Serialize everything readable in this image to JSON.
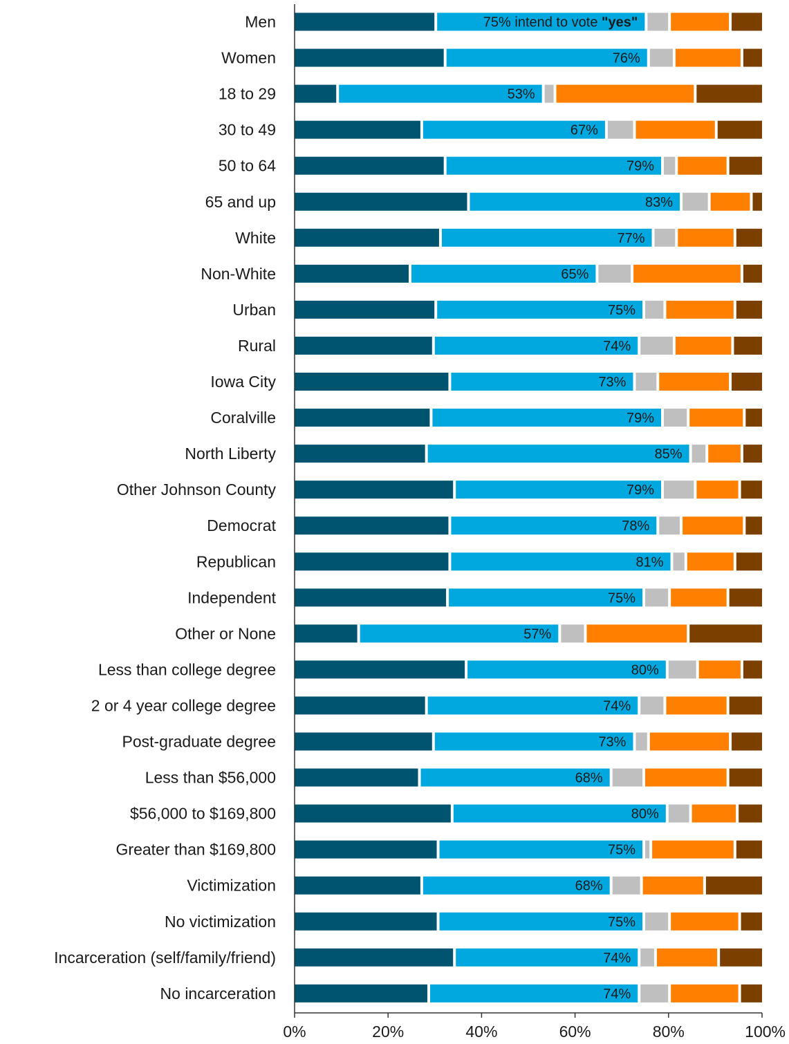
{
  "chart_data": {
    "type": "bar",
    "orientation": "horizontal",
    "stacked": true,
    "percent_scale": true,
    "xlim": [
      0,
      100
    ],
    "x_ticks": [
      "0%",
      "20%",
      "40%",
      "60%",
      "80%",
      "100%"
    ],
    "grid": false,
    "legend": "none",
    "colors": [
      "#005470",
      "#00a8df",
      "#bfbfbf",
      "#ff8000",
      "#7b3f00"
    ],
    "categories": [
      "Men",
      "Women",
      "18 to 29",
      "30 to 49",
      "50 to 64",
      "65 and up",
      "White",
      "Non-White",
      "Urban",
      "Rural",
      "Iowa City",
      "Coralville",
      "North Liberty",
      "Other Johnson County",
      "Democrat",
      "Republican",
      "Independent",
      "Other or None",
      "Less than college degree",
      "2 or 4 year college degree",
      "Post-graduate degree",
      "Less than $56,000",
      "$56,000 to $169,800",
      "Greater than $169,800",
      "Victimization",
      "No victimization",
      "Incarceration (self/family/friend)",
      "No incarceration"
    ],
    "segments": [
      [
        30.5,
        45,
        5,
        13,
        6.5
      ],
      [
        32.5,
        43.5,
        5.5,
        14.5,
        4
      ],
      [
        9.5,
        44,
        2.5,
        30,
        14
      ],
      [
        27.5,
        39.5,
        6,
        17.5,
        9.5
      ],
      [
        32.5,
        46.5,
        3,
        11,
        7
      ],
      [
        37.5,
        45.5,
        6,
        9,
        2
      ],
      [
        31.5,
        45.5,
        5,
        12.5,
        5.5
      ],
      [
        25,
        40,
        7.5,
        23.5,
        4
      ],
      [
        30.5,
        44.5,
        4.5,
        15,
        5.5
      ],
      [
        30,
        44,
        7.5,
        12.5,
        6
      ],
      [
        33.5,
        39.5,
        5,
        15.5,
        6.5
      ],
      [
        29.5,
        49.5,
        5.5,
        12,
        3.5
      ],
      [
        28.5,
        56.5,
        3.5,
        7.5,
        4
      ],
      [
        34.5,
        44.5,
        7,
        9.5,
        4.5
      ],
      [
        33.5,
        44.5,
        5,
        13.5,
        3.5
      ],
      [
        33.5,
        47.5,
        3,
        10.5,
        5.5
      ],
      [
        33,
        42,
        5.5,
        12.5,
        7
      ],
      [
        14,
        43,
        5.5,
        22,
        15.5
      ],
      [
        37,
        43,
        6.5,
        9.5,
        4
      ],
      [
        28.5,
        45.5,
        5.5,
        13.5,
        7
      ],
      [
        30,
        43,
        3,
        17.5,
        6.5
      ],
      [
        27,
        41,
        7,
        18,
        7
      ],
      [
        34,
        46,
        5,
        10,
        5
      ],
      [
        31,
        44,
        1.5,
        18,
        5.5
      ],
      [
        27.5,
        40.5,
        6.5,
        13.5,
        12
      ],
      [
        31,
        44,
        5.5,
        15,
        4.5
      ],
      [
        34.5,
        39.5,
        3.5,
        13.5,
        9
      ],
      [
        29,
        45,
        6.5,
        15,
        4.5
      ]
    ],
    "totals": [
      "75%",
      "76%",
      "53%",
      "67%",
      "79%",
      "83%",
      "77%",
      "65%",
      "75%",
      "74%",
      "73%",
      "79%",
      "85%",
      "79%",
      "78%",
      "81%",
      "75%",
      "57%",
      "80%",
      "74%",
      "73%",
      "68%",
      "80%",
      "75%",
      "68%",
      "75%",
      "74%",
      "74%"
    ],
    "annotation": {
      "prefix": "75% intend to vote ",
      "bold": "\"yes\""
    }
  }
}
